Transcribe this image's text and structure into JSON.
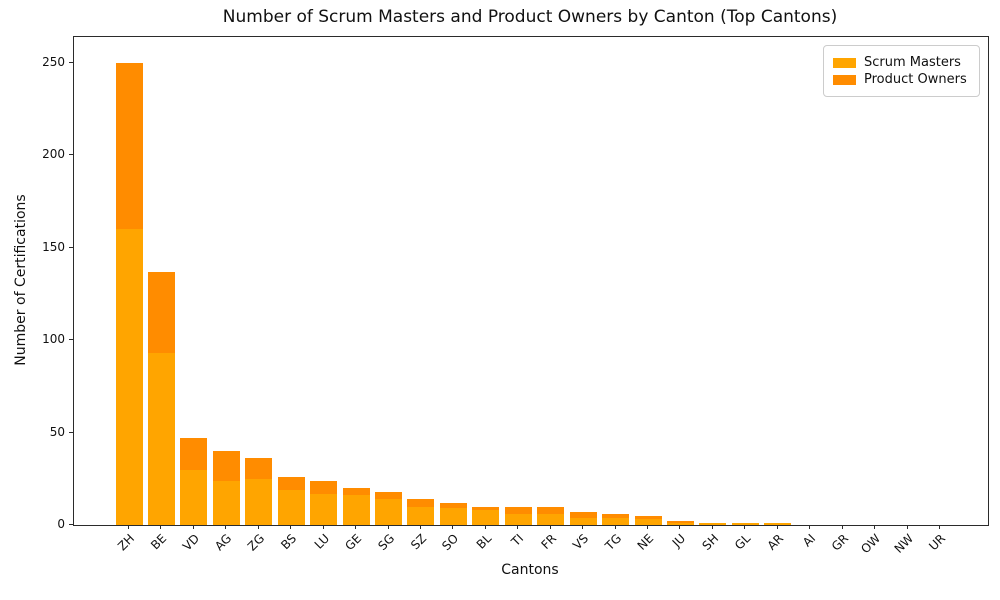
{
  "chart_data": {
    "type": "bar",
    "stacked": true,
    "title": "Number of Scrum Masters and Product Owners by Canton (Top Cantons)",
    "xlabel": "Cantons",
    "ylabel": "Number of Certifications",
    "categories": [
      "ZH",
      "BE",
      "VD",
      "AG",
      "ZG",
      "BS",
      "LU",
      "GE",
      "SG",
      "SZ",
      "SO",
      "BL",
      "TI",
      "FR",
      "VS",
      "TG",
      "NE",
      "JU",
      "SH",
      "GL",
      "AR",
      "AI",
      "GR",
      "OW",
      "NW",
      "UR"
    ],
    "series": [
      {
        "name": "Scrum Masters",
        "color": "#FFA500",
        "values": [
          160,
          93,
          30,
          24,
          25,
          19,
          17,
          16,
          14,
          10,
          9,
          8,
          6,
          6,
          4,
          4,
          3,
          1,
          1,
          1,
          1,
          0,
          0,
          0,
          0,
          0
        ]
      },
      {
        "name": "Product Owners",
        "color": "#FF8C00",
        "values": [
          90,
          44,
          17,
          16,
          11,
          7,
          7,
          4,
          4,
          4,
          3,
          2,
          4,
          4,
          3,
          2,
          2,
          1,
          0,
          0,
          0,
          0,
          0,
          0,
          0,
          0
        ]
      }
    ],
    "ylim": [
      0,
      264
    ],
    "yticks": [
      0,
      50,
      100,
      150,
      200,
      250
    ],
    "grid": false,
    "legend_position": "upper right",
    "x_tick_rotation": 45
  }
}
